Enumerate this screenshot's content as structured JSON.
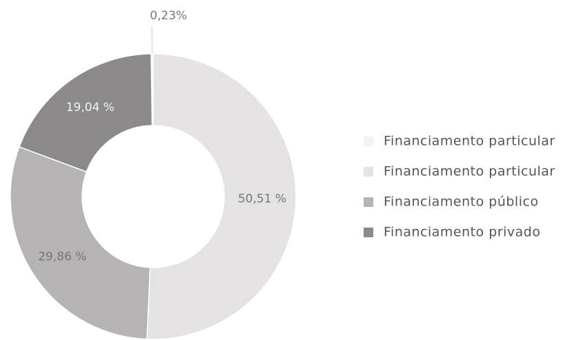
{
  "chart_data": {
    "type": "donut",
    "categories": [
      "Financiamento particular",
      "Financiamento particular",
      "Financiamento público",
      "Financiamento privado"
    ],
    "values": [
      0.23,
      50.51,
      29.86,
      19.04
    ],
    "value_labels": [
      "0,23%",
      "50,51 %",
      "29,86 %",
      "19,04 %"
    ],
    "colors": [
      "#f3f3f3",
      "#e4e2e3",
      "#b5b3b4",
      "#8b898a"
    ],
    "legend": "right"
  }
}
